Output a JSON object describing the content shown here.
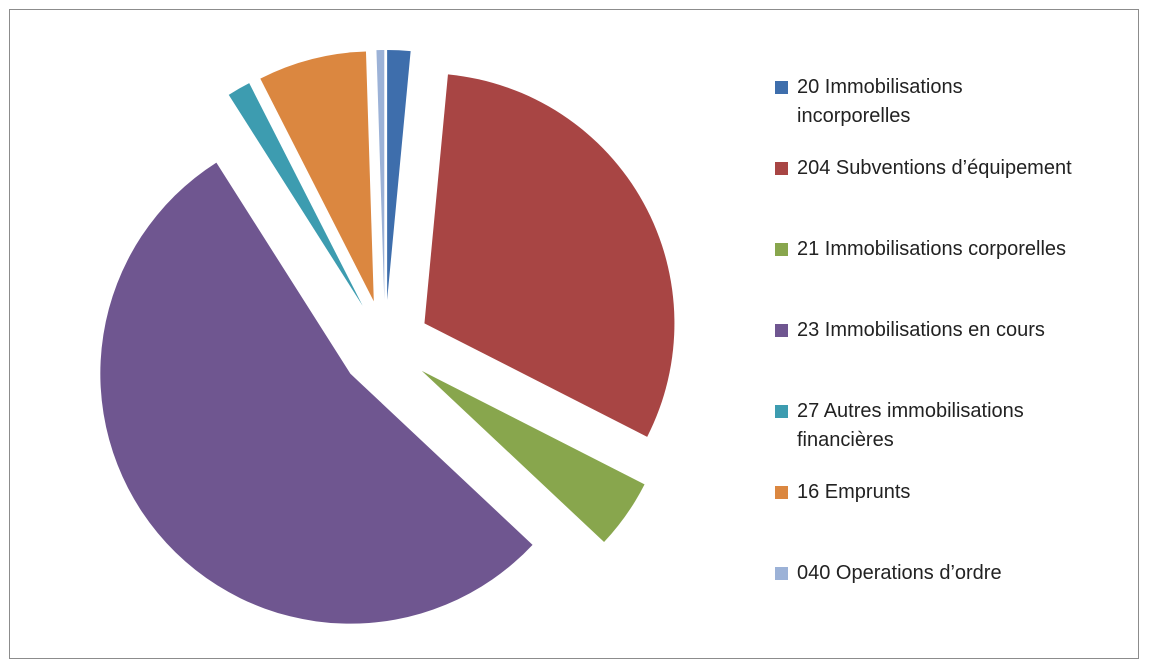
{
  "chart_data": {
    "type": "pie",
    "categories": [
      "20 Immobilisations incorporelles",
      "204 Subventions d’équipement",
      "21 Immobilisations corporelles",
      "23 Immobilisations en cours",
      "27 Autres immobilisations financières",
      "16 Emprunts",
      "040 Operations d’ordre"
    ],
    "values": [
      1.5,
      31,
      4.5,
      54,
      1.5,
      7,
      0.5
    ],
    "colors": [
      "#3e6eac",
      "#a84544",
      "#88a64d",
      "#6f5690",
      "#3d9cb0",
      "#db8740",
      "#9cb2d7"
    ],
    "legend": "right"
  }
}
